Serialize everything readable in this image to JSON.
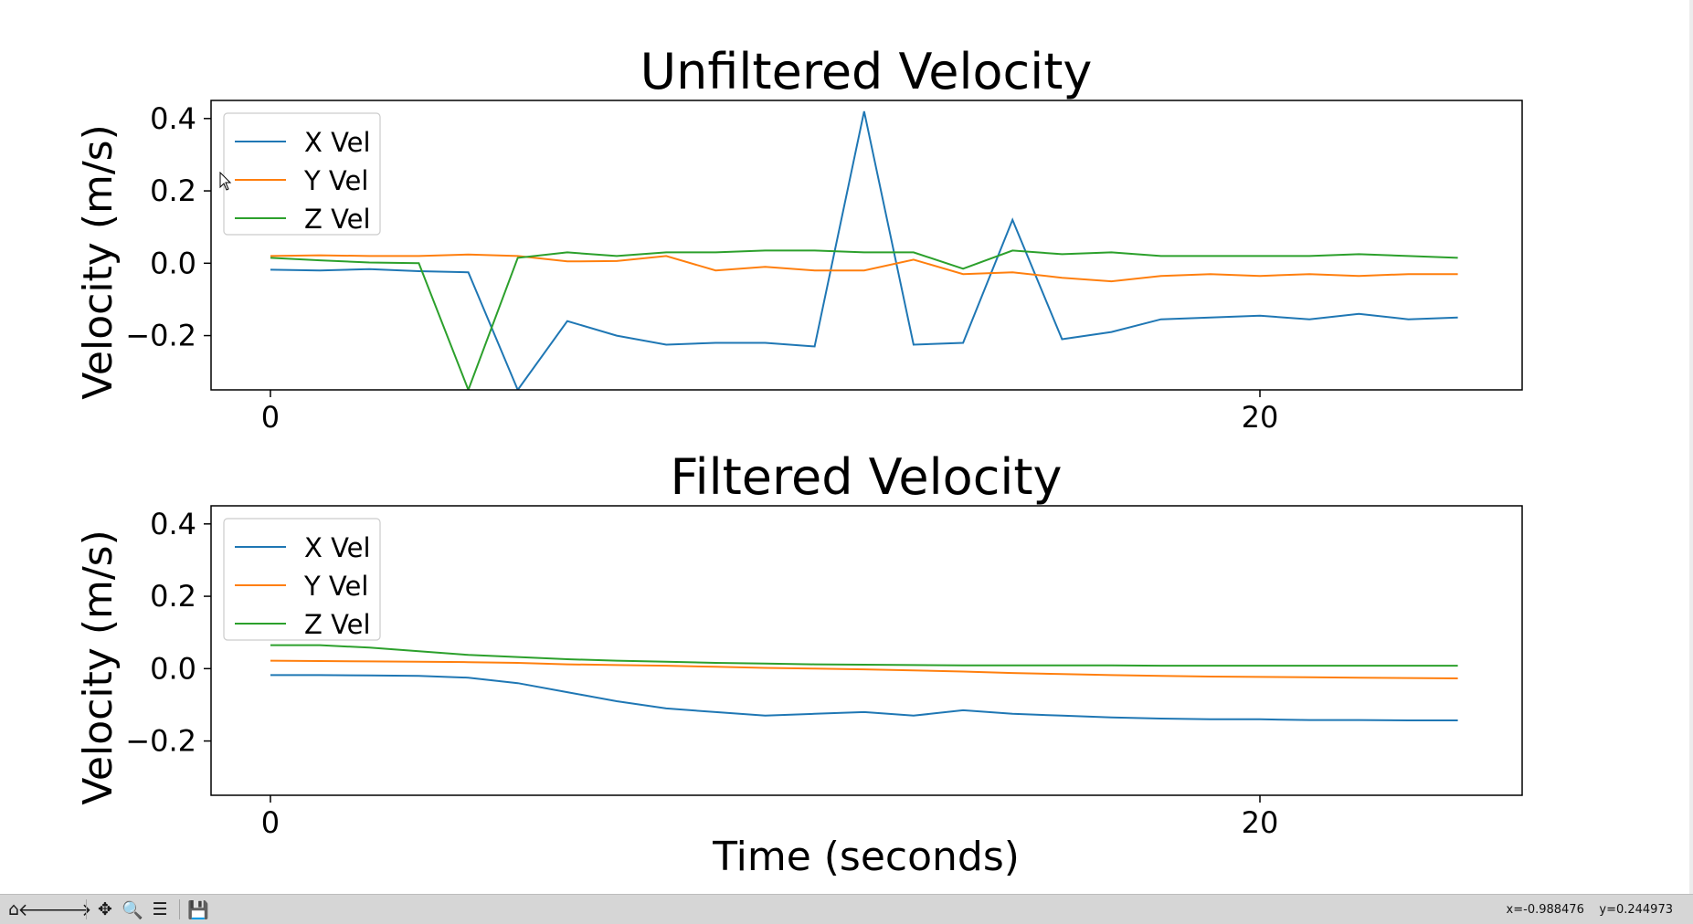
{
  "window": {
    "toolbar": {
      "home_icon": "home-icon",
      "back_icon": "back-arrow-icon",
      "forward_icon": "forward-arrow-icon",
      "pan_icon": "pan-icon",
      "zoom_icon": "zoom-icon",
      "configure_icon": "configure-subplots-icon",
      "save_icon": "save-icon",
      "glyphs": {
        "home": "⌂",
        "back": "🡐",
        "forward": "🡒",
        "pan": "✥",
        "zoom": "🔍",
        "configure": "☰",
        "save": "💾"
      }
    },
    "status": {
      "coordinates": "x=-0.988476    y=0.244973"
    }
  },
  "colors": {
    "x_vel": "#1f77b4",
    "y_vel": "#ff7f0e",
    "z_vel": "#2ca02c",
    "axes": "#000000"
  },
  "shared": {
    "xlabel": "Time (seconds)"
  },
  "chart_data": [
    {
      "type": "line",
      "title": "Unfiltered Velocity",
      "xlabel": "",
      "ylabel": "Velocity (m/s)",
      "xlim": [
        -1.2,
        25.3
      ],
      "ylim": [
        -0.35,
        0.45
      ],
      "xticks": [
        0,
        20
      ],
      "yticks": [
        -0.2,
        0.0,
        0.2,
        0.4
      ],
      "ytick_labels": [
        "−0.2",
        "0.0",
        "0.2",
        "0.4"
      ],
      "legend": {
        "placement": "upper-left",
        "entries": [
          "X Vel",
          "Y Vel",
          "Z Vel"
        ]
      },
      "grid": false,
      "series": [
        {
          "name": "X Vel",
          "color": "#1f77b4",
          "x": [
            0,
            1,
            2,
            3,
            4,
            5,
            6,
            7,
            8,
            9,
            10,
            11,
            12,
            13,
            14,
            15,
            16,
            17,
            18,
            19,
            20,
            21,
            22,
            23,
            24
          ],
          "y": [
            -0.018,
            -0.02,
            -0.016,
            -0.022,
            -0.025,
            -0.35,
            -0.16,
            -0.2,
            -0.225,
            -0.22,
            -0.22,
            -0.23,
            0.42,
            -0.225,
            -0.22,
            0.12,
            -0.21,
            -0.19,
            -0.155,
            -0.15,
            -0.145,
            -0.155,
            -0.14,
            -0.155,
            -0.15
          ]
        },
        {
          "name": "Y Vel",
          "color": "#ff7f0e",
          "x": [
            0,
            1,
            2,
            3,
            4,
            5,
            6,
            7,
            8,
            9,
            10,
            11,
            12,
            13,
            14,
            15,
            16,
            17,
            18,
            19,
            20,
            21,
            22,
            23,
            24
          ],
          "y": [
            0.02,
            0.022,
            0.02,
            0.02,
            0.024,
            0.02,
            0.005,
            0.006,
            0.02,
            -0.02,
            -0.01,
            -0.02,
            -0.02,
            0.01,
            -0.03,
            -0.025,
            -0.04,
            -0.05,
            -0.035,
            -0.03,
            -0.035,
            -0.03,
            -0.035,
            -0.03,
            -0.03
          ]
        },
        {
          "name": "Z Vel",
          "color": "#2ca02c",
          "x": [
            0,
            1,
            2,
            3,
            4,
            5,
            6,
            7,
            8,
            9,
            10,
            11,
            12,
            13,
            14,
            15,
            16,
            17,
            18,
            19,
            20,
            21,
            22,
            23,
            24
          ],
          "y": [
            0.015,
            0.008,
            0.002,
            0.0,
            -0.35,
            0.015,
            0.03,
            0.02,
            0.03,
            0.03,
            0.035,
            0.035,
            0.03,
            0.03,
            -0.015,
            0.035,
            0.025,
            0.03,
            0.02,
            0.02,
            0.02,
            0.02,
            0.025,
            0.02,
            0.015
          ]
        }
      ]
    },
    {
      "type": "line",
      "title": "Filtered Velocity",
      "xlabel": "Time (seconds)",
      "ylabel": "Velocity (m/s)",
      "xlim": [
        -1.2,
        25.3
      ],
      "ylim": [
        -0.35,
        0.45
      ],
      "xticks": [
        0,
        20
      ],
      "yticks": [
        -0.2,
        0.0,
        0.2,
        0.4
      ],
      "ytick_labels": [
        "−0.2",
        "0.0",
        "0.2",
        "0.4"
      ],
      "legend": {
        "placement": "upper-left",
        "entries": [
          "X Vel",
          "Y Vel",
          "Z Vel"
        ]
      },
      "grid": false,
      "series": [
        {
          "name": "X Vel",
          "color": "#1f77b4",
          "x": [
            0,
            1,
            2,
            3,
            4,
            5,
            6,
            7,
            8,
            9,
            10,
            11,
            12,
            13,
            14,
            15,
            16,
            17,
            18,
            19,
            20,
            21,
            22,
            23,
            24
          ],
          "y": [
            -0.018,
            -0.018,
            -0.019,
            -0.02,
            -0.025,
            -0.04,
            -0.065,
            -0.09,
            -0.11,
            -0.12,
            -0.13,
            -0.125,
            -0.12,
            -0.13,
            -0.115,
            -0.125,
            -0.13,
            -0.135,
            -0.138,
            -0.14,
            -0.14,
            -0.142,
            -0.142,
            -0.143,
            -0.143
          ]
        },
        {
          "name": "Y Vel",
          "color": "#ff7f0e",
          "x": [
            0,
            1,
            2,
            3,
            4,
            5,
            6,
            7,
            8,
            9,
            10,
            11,
            12,
            13,
            14,
            15,
            16,
            17,
            18,
            19,
            20,
            21,
            22,
            23,
            24
          ],
          "y": [
            0.022,
            0.021,
            0.02,
            0.019,
            0.018,
            0.016,
            0.012,
            0.01,
            0.008,
            0.005,
            0.002,
            0.0,
            -0.002,
            -0.005,
            -0.008,
            -0.012,
            -0.015,
            -0.018,
            -0.02,
            -0.022,
            -0.023,
            -0.024,
            -0.025,
            -0.026,
            -0.027
          ]
        },
        {
          "name": "Z Vel",
          "color": "#2ca02c",
          "x": [
            0,
            1,
            2,
            3,
            4,
            5,
            6,
            7,
            8,
            9,
            10,
            11,
            12,
            13,
            14,
            15,
            16,
            17,
            18,
            19,
            20,
            21,
            22,
            23,
            24
          ],
          "y": [
            0.065,
            0.065,
            0.058,
            0.048,
            0.038,
            0.032,
            0.026,
            0.022,
            0.019,
            0.016,
            0.014,
            0.012,
            0.011,
            0.01,
            0.009,
            0.009,
            0.009,
            0.009,
            0.008,
            0.008,
            0.008,
            0.008,
            0.008,
            0.008,
            0.008
          ]
        }
      ]
    }
  ]
}
